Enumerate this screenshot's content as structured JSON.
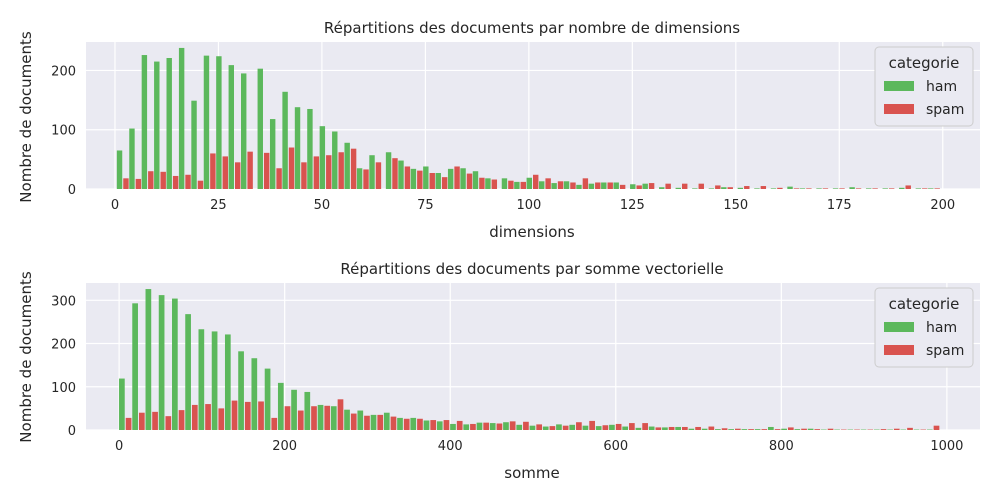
{
  "colors": {
    "ham": "#5cb85c",
    "spam": "#d9534f",
    "plot_bg": "#eaeaf2",
    "grid": "#ffffff"
  },
  "chart_data": [
    {
      "type": "bar",
      "title": "Répartitions des documents par nombre de dimensions",
      "xlabel": "dimensions",
      "ylabel": "Nombre de documents",
      "xlim": [
        -7,
        209
      ],
      "ylim": [
        0,
        248
      ],
      "xticks": [
        0,
        25,
        50,
        75,
        100,
        125,
        150,
        175,
        200
      ],
      "yticks": [
        0,
        100,
        200
      ],
      "grid": true,
      "legend": {
        "title": "categorie",
        "position": "top-right"
      },
      "bin_width": 3.1,
      "x": [
        2,
        5,
        8,
        11,
        14,
        17,
        20,
        23,
        26,
        29,
        32,
        36,
        39,
        42,
        45,
        48,
        51,
        54,
        57,
        60,
        63,
        67,
        70,
        73,
        76,
        79,
        82,
        85,
        88,
        91,
        95,
        98,
        101,
        104,
        107,
        110,
        113,
        116,
        119,
        122,
        126,
        129,
        133,
        137,
        141,
        145,
        148,
        152,
        156,
        160,
        164,
        167,
        171,
        175,
        179,
        183,
        187,
        191,
        195,
        198
      ],
      "series": [
        {
          "name": "ham",
          "values": [
            65,
            102,
            226,
            215,
            221,
            238,
            149,
            225,
            224,
            209,
            195,
            203,
            118,
            164,
            138,
            135,
            106,
            97,
            78,
            35,
            57,
            62,
            48,
            34,
            38,
            27,
            34,
            35,
            30,
            18,
            18,
            12,
            19,
            13,
            10,
            13,
            7,
            9,
            11,
            11,
            8,
            9,
            3,
            2,
            1,
            1,
            3,
            2,
            1,
            1,
            4,
            1,
            1,
            1,
            3,
            1,
            1,
            2,
            1,
            1
          ]
        },
        {
          "name": "spam",
          "values": [
            18,
            17,
            30,
            29,
            22,
            24,
            14,
            60,
            55,
            45,
            63,
            61,
            35,
            70,
            45,
            55,
            57,
            62,
            68,
            33,
            45,
            52,
            38,
            31,
            27,
            20,
            38,
            26,
            19,
            16,
            14,
            12,
            24,
            18,
            13,
            11,
            18,
            11,
            11,
            7,
            6,
            10,
            9,
            9,
            9,
            6,
            3,
            5,
            5,
            2,
            1,
            1,
            1,
            1,
            1,
            1,
            1,
            6,
            1,
            1
          ]
        }
      ]
    },
    {
      "type": "bar",
      "title": "Répartitions des documents par somme vectorielle",
      "xlabel": "somme",
      "ylabel": "Nombre de documents",
      "xlim": [
        -40,
        1040
      ],
      "ylim": [
        0,
        340
      ],
      "xticks": [
        0,
        200,
        400,
        600,
        800,
        1000
      ],
      "yticks": [
        0,
        100,
        200,
        300
      ],
      "grid": true,
      "legend": {
        "title": "categorie",
        "position": "top-right"
      },
      "bin_width": 16.2,
      "x": [
        8,
        24,
        40,
        56,
        72,
        88,
        104,
        120,
        136,
        152,
        168,
        184,
        200,
        216,
        232,
        248,
        264,
        280,
        296,
        312,
        328,
        344,
        360,
        376,
        392,
        408,
        424,
        440,
        456,
        472,
        488,
        504,
        520,
        536,
        552,
        568,
        584,
        600,
        616,
        632,
        648,
        664,
        680,
        696,
        712,
        728,
        744,
        760,
        776,
        792,
        808,
        824,
        840,
        856,
        872,
        888,
        904,
        920,
        936,
        952,
        968,
        984
      ],
      "series": [
        {
          "name": "ham",
          "values": [
            119,
            293,
            326,
            312,
            304,
            268,
            233,
            228,
            221,
            182,
            166,
            142,
            109,
            93,
            88,
            58,
            55,
            47,
            45,
            35,
            40,
            28,
            28,
            22,
            20,
            14,
            13,
            17,
            16,
            18,
            12,
            10,
            8,
            13,
            12,
            10,
            9,
            12,
            8,
            5,
            8,
            6,
            7,
            3,
            3,
            2,
            2,
            2,
            2,
            7,
            3,
            2,
            3,
            1,
            1,
            1,
            1,
            1,
            1,
            1,
            1,
            1
          ]
        },
        {
          "name": "spam",
          "values": [
            28,
            40,
            42,
            32,
            46,
            58,
            60,
            50,
            68,
            65,
            66,
            28,
            55,
            45,
            55,
            56,
            71,
            38,
            33,
            35,
            31,
            26,
            26,
            23,
            23,
            21,
            14,
            17,
            15,
            20,
            19,
            13,
            9,
            10,
            18,
            21,
            11,
            14,
            16,
            16,
            6,
            7,
            7,
            7,
            8,
            4,
            3,
            2,
            2,
            2,
            6,
            3,
            2,
            3,
            1,
            1,
            1,
            2,
            3,
            5,
            1,
            10
          ]
        }
      ]
    }
  ]
}
